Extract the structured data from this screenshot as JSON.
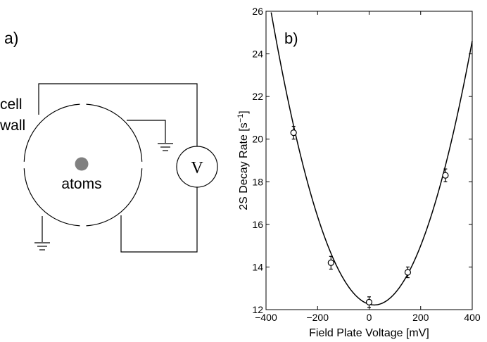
{
  "panel_a": {
    "label": "a)",
    "cell_wall_line1": "cell",
    "cell_wall_line2": "wall",
    "atoms_label": "atoms",
    "voltmeter_label": "V",
    "atom_color": "#808080"
  },
  "chart_data": {
    "type": "scatter",
    "panel_label": "b)",
    "title": "",
    "xlabel": "Field Plate Voltage [mV]",
    "ylabel_main": "2S Decay Rate [s",
    "ylabel_sup": "−1",
    "ylabel_close": "]",
    "xlim": [
      -400,
      400
    ],
    "ylim": [
      12,
      26
    ],
    "xticks": [
      -400,
      -200,
      0,
      200,
      400
    ],
    "xtick_labels": [
      "−400",
      "−200",
      "0",
      "200",
      "400"
    ],
    "yticks": [
      12,
      14,
      16,
      18,
      20,
      22,
      24,
      26
    ],
    "ytick_labels": [
      "12",
      "14",
      "16",
      "18",
      "20",
      "22",
      "24",
      "26"
    ],
    "grid": false,
    "series": [
      {
        "marker": "circle",
        "x": [
          -293,
          -148,
          0,
          150,
          296
        ],
        "y": [
          20.3,
          14.2,
          12.35,
          13.75,
          18.3
        ],
        "err": [
          0.3,
          0.3,
          0.25,
          0.25,
          0.3
        ]
      }
    ],
    "fit": {
      "type": "quadratic",
      "vertex_x": 20,
      "vertex_y": 12.22,
      "curvature": 8.58e-05
    }
  }
}
